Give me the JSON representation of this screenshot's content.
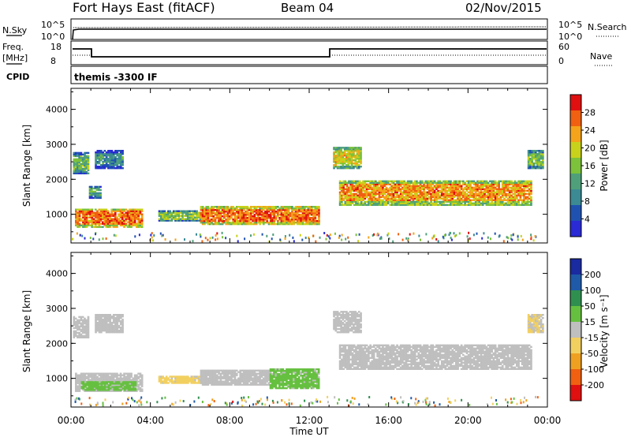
{
  "header": {
    "station": "Fort Hays East (fitACF)",
    "beam": "Beam 04",
    "date": "02/Nov/2015"
  },
  "top_panels": {
    "nsky_label": "N.Sky",
    "nsky_ticks": [
      "10^5",
      "10^0"
    ],
    "nsearch_label": "N.Search",
    "nsearch_ticks": [
      "10^5",
      "10^0"
    ],
    "freq_label": "Freq.",
    "freq_unit": "[MHz]",
    "freq_ticks": [
      "18",
      "8"
    ],
    "nave_label": "Nave",
    "nave_ticks": [
      "60",
      "0"
    ],
    "cpid_label": "CPID",
    "cpid_text": "themis -3300 IF"
  },
  "colors": {
    "power_scale": [
      "#2a2ad6",
      "#1f52b0",
      "#3b8a94",
      "#4fa07a",
      "#7cc23a",
      "#c8d21a",
      "#f5a31a",
      "#f06010",
      "#e01010"
    ],
    "velocity_scale": [
      "#1a2aa0",
      "#1e5aa8",
      "#2f8f4f",
      "#66c040",
      "#bfbfbf",
      "#f2d060",
      "#f0a020",
      "#f06010",
      "#e01010"
    ],
    "ground_scatter": "#c0c0c0"
  },
  "chart_data": [
    {
      "type": "heatmap",
      "name": "power",
      "ylabel": "Slant Range [km]",
      "ylim": [
        180,
        4600
      ],
      "yticks": [
        "4000",
        "3000",
        "2000",
        "1000"
      ],
      "xlim": [
        0,
        24
      ],
      "colorbar": {
        "label": "Power [dB]",
        "ticks": [
          "28",
          "24",
          "20",
          "16",
          "12",
          "8",
          "4"
        ],
        "range": [
          0,
          32
        ]
      },
      "echo_regions": [
        {
          "t0": 0.1,
          "t1": 0.9,
          "r0": 2150,
          "r1": 2750,
          "power_db": 14
        },
        {
          "t0": 1.2,
          "t1": 2.6,
          "r0": 2300,
          "r1": 2800,
          "power_db": 10
        },
        {
          "t0": 0.9,
          "t1": 1.5,
          "r0": 1450,
          "r1": 1800,
          "power_db": 12
        },
        {
          "t0": 0.2,
          "t1": 3.6,
          "r0": 620,
          "r1": 1150,
          "power_db": 26
        },
        {
          "t0": 4.4,
          "t1": 6.5,
          "r0": 800,
          "r1": 1100,
          "power_db": 16
        },
        {
          "t0": 6.5,
          "t1": 12.5,
          "r0": 700,
          "r1": 1200,
          "power_db": 26
        },
        {
          "t0": 13.2,
          "t1": 14.6,
          "r0": 2300,
          "r1": 2900,
          "power_db": 20
        },
        {
          "t0": 13.5,
          "t1": 23.2,
          "r0": 1250,
          "r1": 1950,
          "power_db": 24
        },
        {
          "t0": 23.0,
          "t1": 23.8,
          "r0": 2300,
          "r1": 2800,
          "power_db": 16
        }
      ]
    },
    {
      "type": "heatmap",
      "name": "velocity",
      "xlabel": "Time UT",
      "ylabel": "Slant Range [km]",
      "ylim": [
        180,
        4600
      ],
      "yticks": [
        "4000",
        "3000",
        "2000",
        "1000"
      ],
      "xlim": [
        0,
        24
      ],
      "xticks": [
        "00:00",
        "04:00",
        "08:00",
        "12:00",
        "16:00",
        "20:00",
        "00:00"
      ],
      "colorbar": {
        "label": "Velocity [m s⁻¹]",
        "ticks": [
          "200",
          "100",
          "50",
          "15",
          "-15",
          "-50",
          "-100",
          "-200"
        ],
        "range": [
          -250,
          250
        ]
      },
      "echo_regions": [
        {
          "t0": 0.1,
          "t1": 0.9,
          "r0": 2150,
          "r1": 2750,
          "velocity": 0
        },
        {
          "t0": 1.2,
          "t1": 2.6,
          "r0": 2300,
          "r1": 2800,
          "velocity": 0
        },
        {
          "t0": 0.2,
          "t1": 3.6,
          "r0": 620,
          "r1": 1150,
          "velocity": 0
        },
        {
          "t0": 0.5,
          "t1": 3.2,
          "r0": 650,
          "r1": 900,
          "velocity": 40
        },
        {
          "t0": 4.4,
          "t1": 6.5,
          "r0": 850,
          "r1": 1050,
          "velocity": -40
        },
        {
          "t0": 6.5,
          "t1": 10.0,
          "r0": 800,
          "r1": 1250,
          "velocity": 0
        },
        {
          "t0": 10.0,
          "t1": 12.5,
          "r0": 700,
          "r1": 1250,
          "velocity": 40
        },
        {
          "t0": 13.2,
          "t1": 14.6,
          "r0": 2300,
          "r1": 2900,
          "velocity": 0
        },
        {
          "t0": 13.5,
          "t1": 23.2,
          "r0": 1250,
          "r1": 1950,
          "velocity": 0
        },
        {
          "t0": 23.0,
          "t1": 23.8,
          "r0": 2300,
          "r1": 2800,
          "velocity": -30
        }
      ]
    }
  ]
}
